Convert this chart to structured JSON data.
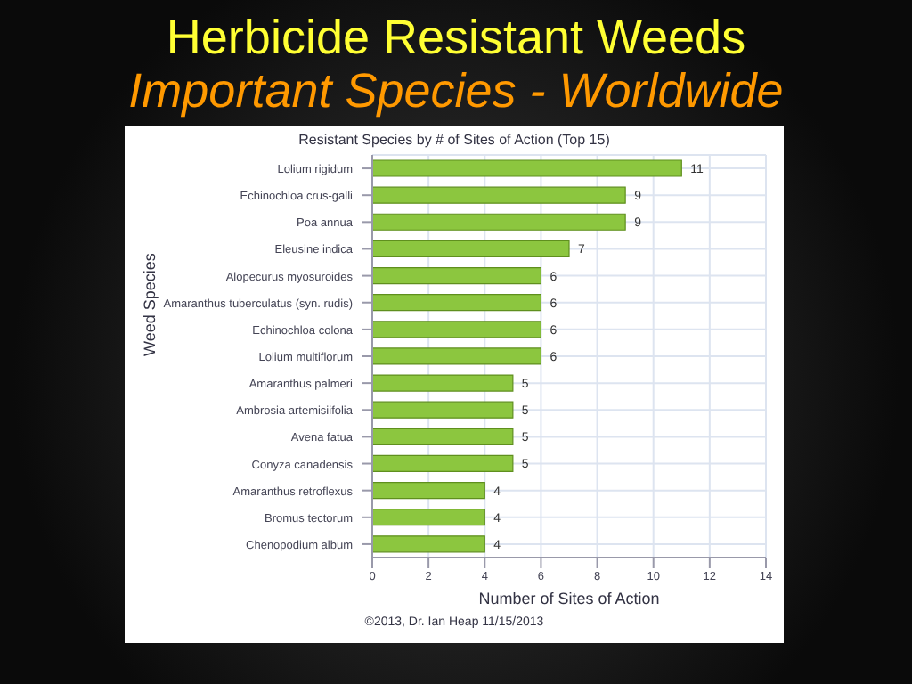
{
  "chart_data": {
    "type": "bar",
    "orientation": "horizontal",
    "title": "Herbicide Resistant Weeds",
    "subtitle": "Important Species - Worldwide",
    "annotations": [
      "Resistant Species by # of Sites of Action (Top 15)",
      "©2013, Dr. Ian Heap 11/15/2013"
    ],
    "xlabel": "Number of Sites of Action",
    "ylabel": "Weed Species",
    "categories": [
      "Lolium rigidum",
      "Echinochloa crus-galli",
      "Poa annua",
      "Eleusine indica",
      "Alopecurus myosuroides",
      "Amaranthus tuberculatus (syn. rudis)",
      "Echinochloa colona",
      "Lolium multiflorum",
      "Amaranthus palmeri",
      "Ambrosia artemisiifolia",
      "Avena fatua",
      "Conyza canadensis",
      "Amaranthus retroflexus",
      "Bromus tectorum",
      "Chenopodium album"
    ],
    "values": [
      11,
      9,
      9,
      7,
      6,
      6,
      6,
      6,
      5,
      5,
      5,
      5,
      4,
      4,
      4
    ],
    "color": "#8cc63f",
    "xlim": [
      0,
      14
    ],
    "xticks": [
      0,
      2,
      4,
      6,
      8,
      10,
      12,
      14
    ],
    "grid": true,
    "data_labels": true
  }
}
